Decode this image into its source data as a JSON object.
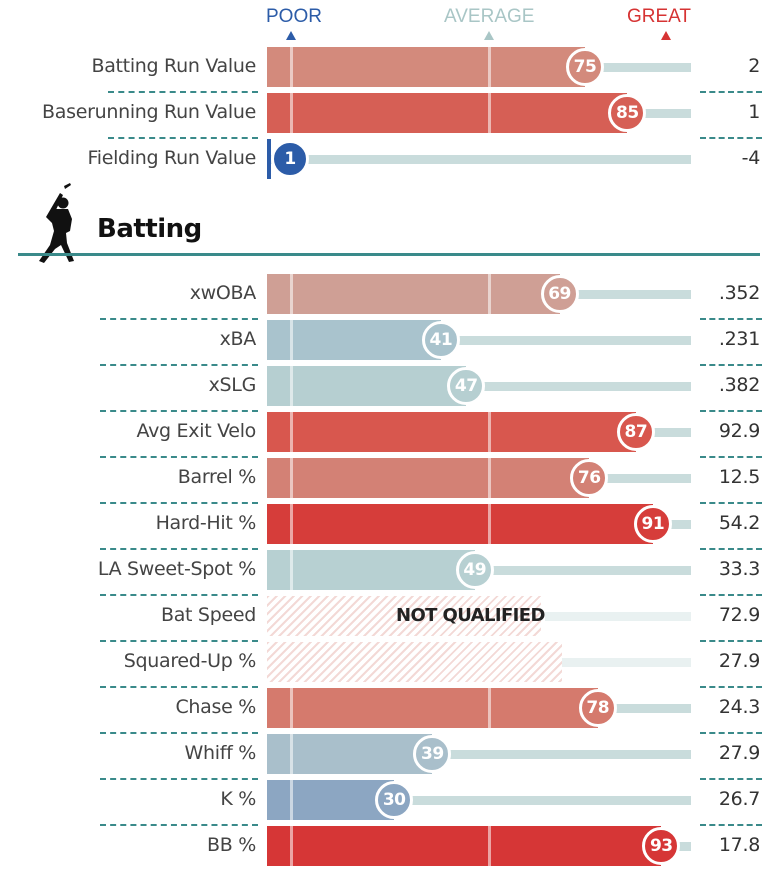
{
  "colors": {
    "poor": "#2c5ca8",
    "average": "#a9c6c6",
    "great": "#d63333",
    "divider": "#3a8a8a",
    "track": "#c9dcdc"
  },
  "scale": {
    "poor_label": "POOR",
    "average_label": "AVERAGE",
    "great_label": "GREAT"
  },
  "section": {
    "title": "Batting",
    "icon": "batter-silhouette-icon"
  },
  "chart_data": [
    {
      "type": "bar",
      "orientation": "horizontal",
      "xlim": [
        0,
        100
      ],
      "categories": [
        "Batting Run Value",
        "Baserunning Run Value",
        "Fielding Run Value"
      ],
      "percentiles": [
        75,
        85,
        1
      ],
      "values": [
        "2",
        "1",
        "-4"
      ],
      "bar_colors": [
        "#d38a7c",
        "#d65f55",
        "#2c5ca8"
      ]
    },
    {
      "type": "bar",
      "orientation": "horizontal",
      "title": "Batting",
      "xlim": [
        0,
        100
      ],
      "categories": [
        "xwOBA",
        "xBA",
        "xSLG",
        "Avg Exit Velo",
        "Barrel %",
        "Hard-Hit %",
        "LA Sweet-Spot %",
        "Bat Speed",
        "Squared-Up %",
        "Chase %",
        "Whiff %",
        "K %",
        "BB %"
      ],
      "percentiles": [
        69,
        41,
        47,
        87,
        76,
        91,
        49,
        null,
        null,
        78,
        39,
        30,
        93
      ],
      "values": [
        ".352",
        ".231",
        ".382",
        "92.9",
        "12.5",
        "54.2",
        "33.3",
        "72.9",
        "27.9",
        "24.3",
        "27.9",
        "26.7",
        "17.8"
      ],
      "qualified": [
        true,
        true,
        true,
        true,
        true,
        true,
        true,
        false,
        false,
        true,
        true,
        true,
        true
      ],
      "bar_colors": [
        "#cf9f95",
        "#a9c3cd",
        "#b6cfd1",
        "#d8574e",
        "#d38175",
        "#d63d3a",
        "#b7d0d2",
        "#f3d9d6",
        "#f3d9d6",
        "#d57a6d",
        "#a9bfcb",
        "#8ca6c2",
        "#d63636"
      ],
      "not_qualified_label": "NOT QUALIFIED"
    }
  ]
}
